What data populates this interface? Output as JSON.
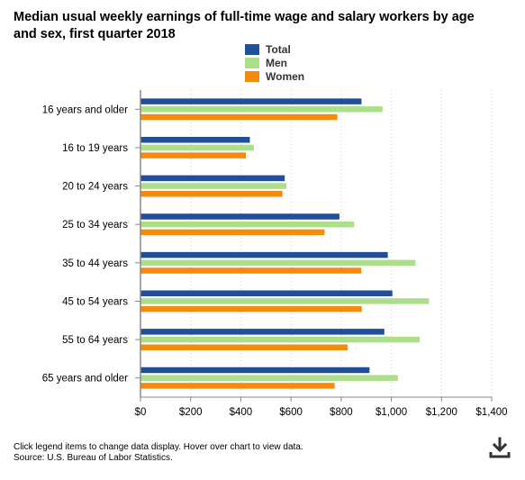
{
  "chart_data": {
    "type": "bar",
    "orientation": "horizontal",
    "title": "Median usual weekly earnings of full-time wage and salary workers by age and sex, first quarter 2018",
    "categories": [
      "16 years and older",
      "16 to 19 years",
      "20 to 24 years",
      "25 to 34 years",
      "35 to 44 years",
      "45 to 54 years",
      "55 to 64 years",
      "65 years and older"
    ],
    "series": [
      {
        "name": "Total",
        "color": "#1f4e9a",
        "values": [
          881,
          436,
          575,
          793,
          986,
          1004,
          972,
          913
        ]
      },
      {
        "name": "Men",
        "color": "#addf8a",
        "values": [
          965,
          452,
          582,
          852,
          1096,
          1150,
          1113,
          1026
        ]
      },
      {
        "name": "Women",
        "color": "#f58a0b",
        "values": [
          785,
          420,
          566,
          734,
          880,
          882,
          826,
          774
        ]
      }
    ],
    "xlim": [
      0,
      1400
    ],
    "xticks": [
      0,
      200,
      400,
      600,
      800,
      1000,
      1200,
      1400
    ],
    "xtick_labels": [
      "$0",
      "$200",
      "$400",
      "$600",
      "$800",
      "$1,000",
      "$1,200",
      "$1,400"
    ],
    "legend_position": "top-center",
    "grid": "vertical dotted"
  },
  "footer": {
    "note": "Click legend items to change data display. Hover over chart to view data.",
    "source": "Source: U.S. Bureau of Labor Statistics."
  },
  "icons": {
    "download": "download-icon"
  }
}
